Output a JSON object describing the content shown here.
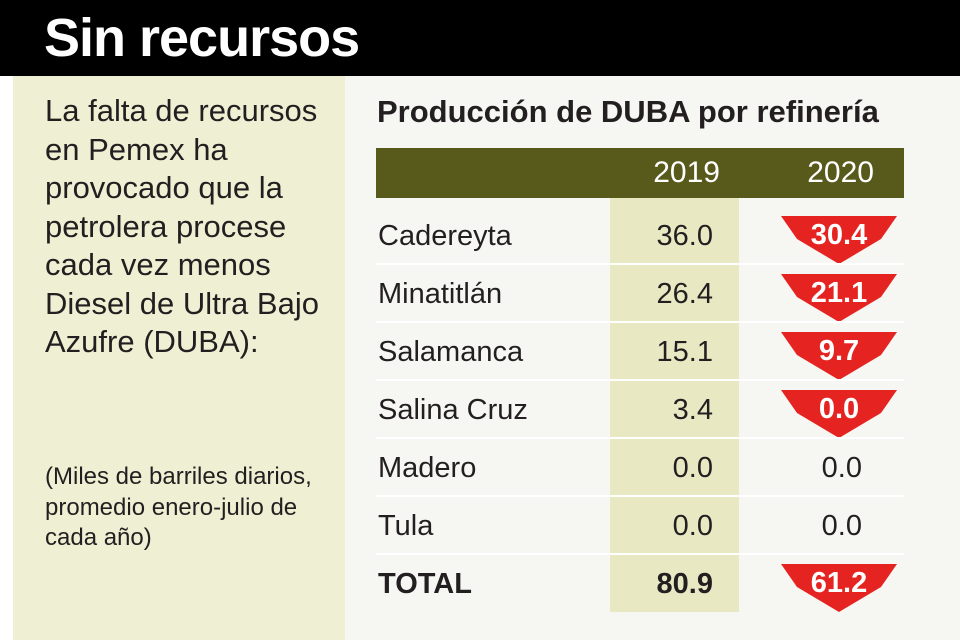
{
  "header": {
    "title": "Sin recursos"
  },
  "intro": "La falta de recursos en Pemex ha provocado que la petrolera procese cada vez menos Diesel de Ultra Bajo Azufre (DUBA):",
  "note": "(Miles de barriles diarios, promedio enero-julio de cada año)",
  "table": {
    "title": "Producción de DUBA por refinería",
    "col_2019": "2019",
    "col_2020": "2020",
    "rows": [
      {
        "name": "Cadereyta",
        "y2019": "36.0",
        "y2020": "30.4"
      },
      {
        "name": "Minatitlán",
        "y2019": "26.4",
        "y2020": "21.1"
      },
      {
        "name": "Salamanca",
        "y2019": "15.1",
        "y2020": "9.7"
      },
      {
        "name": "Salina Cruz",
        "y2019": "3.4",
        "y2020": "0.0"
      },
      {
        "name": "Madero",
        "y2019": "0.0",
        "y2020": "0.0"
      },
      {
        "name": "Tula",
        "y2019": "0.0",
        "y2020": "0.0"
      }
    ],
    "total": {
      "name": "TOTAL",
      "y2019": "80.9",
      "y2020": "61.2"
    }
  },
  "chart_data": {
    "type": "table",
    "title": "Producción de DUBA por refinería",
    "columns": [
      "2019",
      "2020"
    ],
    "categories": [
      "Cadereyta",
      "Minatitlán",
      "Salamanca",
      "Salina Cruz",
      "Madero",
      "Tula",
      "TOTAL"
    ],
    "series": [
      {
        "name": "2019",
        "values": [
          36.0,
          26.4,
          15.1,
          3.4,
          0.0,
          0.0,
          80.9
        ]
      },
      {
        "name": "2020",
        "values": [
          30.4,
          21.1,
          9.7,
          0.0,
          0.0,
          0.0,
          61.2
        ]
      }
    ],
    "decrease_marker_2020": [
      true,
      true,
      true,
      true,
      false,
      false,
      true
    ]
  },
  "colors": {
    "header_bg": "#000000",
    "left_panel_bg": "#efefd3",
    "table_header_bg": "#585a1b",
    "column_2019_bg": "#e8e9c3",
    "decrease_arrow": "#e52421"
  }
}
